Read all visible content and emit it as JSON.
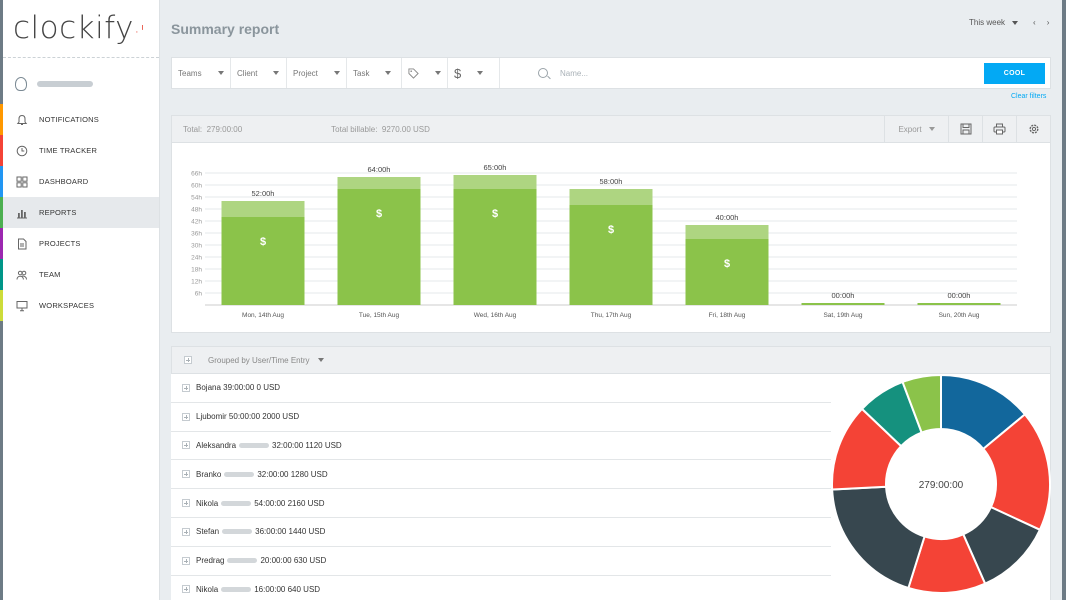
{
  "app": {
    "logo_text": "clockify"
  },
  "sidebar": {
    "items": [
      {
        "label": "NOTIFICATIONS",
        "icon": "bell-icon",
        "color": "#ff9800"
      },
      {
        "label": "TIME TRACKER",
        "icon": "clock-icon",
        "color": "#f44336"
      },
      {
        "label": "DASHBOARD",
        "icon": "dashboard-icon",
        "color": "#2196f3"
      },
      {
        "label": "REPORTS",
        "icon": "bar-chart-icon",
        "color": "#4caf50",
        "active": true
      },
      {
        "label": "PROJECTS",
        "icon": "document-icon",
        "color": "#9c27b0"
      },
      {
        "label": "TEAM",
        "icon": "team-icon",
        "color": "#009688"
      },
      {
        "label": "WORKSPACES",
        "icon": "monitor-icon",
        "color": "#cddc39"
      }
    ]
  },
  "header": {
    "title": "Summary report",
    "range": "This week",
    "prev": "‹",
    "next": "›"
  },
  "filters": {
    "teams": "Teams",
    "client": "Client",
    "project": "Project",
    "task": "Task",
    "dollar": "$",
    "search_placeholder": "Name...",
    "apply_label": "COOL",
    "clear_label": "Clear filters"
  },
  "totals": {
    "total_label": "Total:",
    "total_value": "279:00:00",
    "billable_label": "Total billable:",
    "billable_value": "9270.00 USD",
    "export_label": "Export"
  },
  "chart_data": {
    "type": "bar",
    "categories": [
      "Mon, 14th Aug",
      "Tue, 15th Aug",
      "Wed, 16th Aug",
      "Thu, 17th Aug",
      "Fri, 18th Aug",
      "Sat, 19th Aug",
      "Sun, 20th Aug"
    ],
    "values": [
      52,
      64,
      65,
      58,
      40,
      0,
      0
    ],
    "billable": [
      44,
      58,
      58,
      50,
      33,
      0,
      0
    ],
    "labels": [
      "52:00h",
      "64:00h",
      "65:00h",
      "58:00h",
      "40:00h",
      "00:00h",
      "00:00h"
    ],
    "ylim": [
      0,
      66
    ],
    "yticks": [
      6,
      12,
      18,
      24,
      30,
      36,
      42,
      48,
      54,
      60,
      66
    ],
    "ytick_labels": [
      "6h",
      "12h",
      "18h",
      "24h",
      "30h",
      "36h",
      "42h",
      "48h",
      "54h",
      "60h",
      "66h"
    ],
    "billable_mark": "$",
    "colors": {
      "billable": "#8bc34a",
      "non_billable": "#aed581"
    },
    "grid": true
  },
  "grouping": {
    "label": "Grouped by User/Time Entry"
  },
  "users": [
    {
      "first": "Bojana",
      "rest": "39:00:00 0 USD",
      "blurred": false
    },
    {
      "first": "Ljubomir",
      "rest": "50:00:00 2000 USD",
      "blurred": false
    },
    {
      "first": "Aleksandra",
      "rest": "32:00:00 1120 USD",
      "blurred": true
    },
    {
      "first": "Branko",
      "rest": "32:00:00 1280 USD",
      "blurred": true
    },
    {
      "first": "Nikola",
      "rest": "54:00:00 2160 USD",
      "blurred": true
    },
    {
      "first": "Stefan",
      "rest": "36:00:00 1440 USD",
      "blurred": true
    },
    {
      "first": "Predrag",
      "rest": "20:00:00 630 USD",
      "blurred": true
    },
    {
      "first": "Nikola",
      "rest": "16:00:00 640 USD",
      "blurred": true
    }
  ],
  "donut": {
    "center_label": "279:00:00",
    "slices": [
      {
        "value": 39,
        "color": "#12679c"
      },
      {
        "value": 50,
        "color": "#f44336"
      },
      {
        "value": 32,
        "color": "#37474f"
      },
      {
        "value": 32,
        "color": "#f44336"
      },
      {
        "value": 54,
        "color": "#37474f"
      },
      {
        "value": 36,
        "color": "#f44336"
      },
      {
        "value": 20,
        "color": "#15917e"
      },
      {
        "value": 16,
        "color": "#8bc34a"
      }
    ]
  }
}
